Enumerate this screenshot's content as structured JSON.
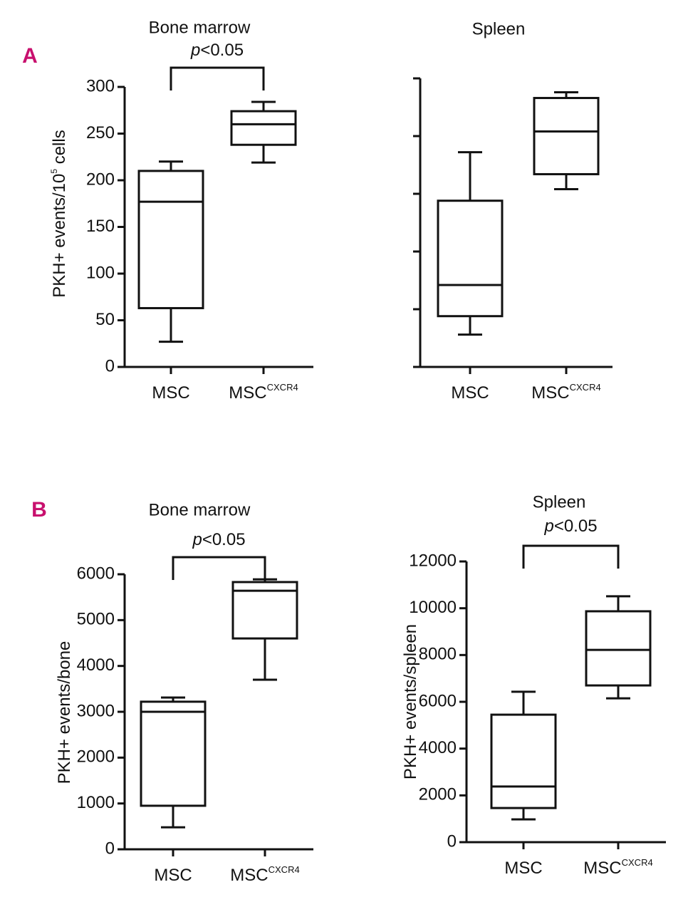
{
  "chart_data": [
    {
      "type": "box",
      "panel": "A",
      "title": "Bone marrow",
      "ylabel": {
        "text": "PKH+ events/10",
        "sup": "5",
        "text2": " cells"
      },
      "annotation": {
        "italic": "p",
        "text": "<0.05"
      },
      "categories": [
        {
          "base": "MSC"
        },
        {
          "base": "MSC",
          "sup": "CXCR4"
        }
      ],
      "boxes": [
        {
          "min": 27,
          "q1": 63,
          "median": 177,
          "q3": 210,
          "max": 220
        },
        {
          "min": 219,
          "q1": 238,
          "median": 260,
          "q3": 274,
          "max": 284
        }
      ],
      "ylim": [
        0,
        300
      ],
      "yticks": [
        0,
        50,
        100,
        150,
        200,
        250,
        300
      ],
      "show_ytick_labels": true,
      "color": "#111111",
      "panel_color": "#c8106e"
    },
    {
      "type": "box",
      "title": "Spleen",
      "categories": [
        {
          "base": "MSC"
        },
        {
          "base": "MSC",
          "sup": "CXCR4"
        }
      ],
      "boxes": [
        {
          "min": 28,
          "q1": 44,
          "median": 71,
          "q3": 144,
          "max": 186
        },
        {
          "min": 154,
          "q1": 167,
          "median": 204,
          "q3": 233,
          "max": 238
        }
      ],
      "ylim": [
        0,
        250
      ],
      "yticks": [
        0,
        50,
        100,
        150,
        200,
        250
      ],
      "show_ytick_labels": false,
      "color": "#111111"
    },
    {
      "type": "box",
      "panel": "B",
      "title": "Bone marrow",
      "ylabel": {
        "text": "PKH+ events/bone"
      },
      "annotation": {
        "italic": "p",
        "text": "<0.05"
      },
      "categories": [
        {
          "base": "MSC"
        },
        {
          "base": "MSC",
          "sup": "CXCR4"
        }
      ],
      "boxes": [
        {
          "min": 480,
          "q1": 950,
          "median": 3000,
          "q3": 3220,
          "max": 3310
        },
        {
          "min": 3700,
          "q1": 4600,
          "median": 5640,
          "q3": 5830,
          "max": 5890
        }
      ],
      "ylim": [
        0,
        6000
      ],
      "yticks": [
        0,
        1000,
        2000,
        3000,
        4000,
        5000,
        6000
      ],
      "show_ytick_labels": true,
      "color": "#111111",
      "panel_color": "#c8106e"
    },
    {
      "type": "box",
      "title": "Spleen",
      "ylabel": {
        "text": "PKH+ events/spleen"
      },
      "annotation": {
        "italic": "p",
        "text": "<0.05"
      },
      "categories": [
        {
          "base": "MSC"
        },
        {
          "base": "MSC",
          "sup": "CXCR4"
        }
      ],
      "boxes": [
        {
          "min": 975,
          "q1": 1460,
          "median": 2380,
          "q3": 5450,
          "max": 6430
        },
        {
          "min": 6150,
          "q1": 6700,
          "median": 8220,
          "q3": 9870,
          "max": 10510
        }
      ],
      "ylim": [
        0,
        12000
      ],
      "yticks": [
        0,
        2000,
        4000,
        6000,
        8000,
        10000,
        12000
      ],
      "show_ytick_labels": true,
      "color": "#111111"
    }
  ]
}
